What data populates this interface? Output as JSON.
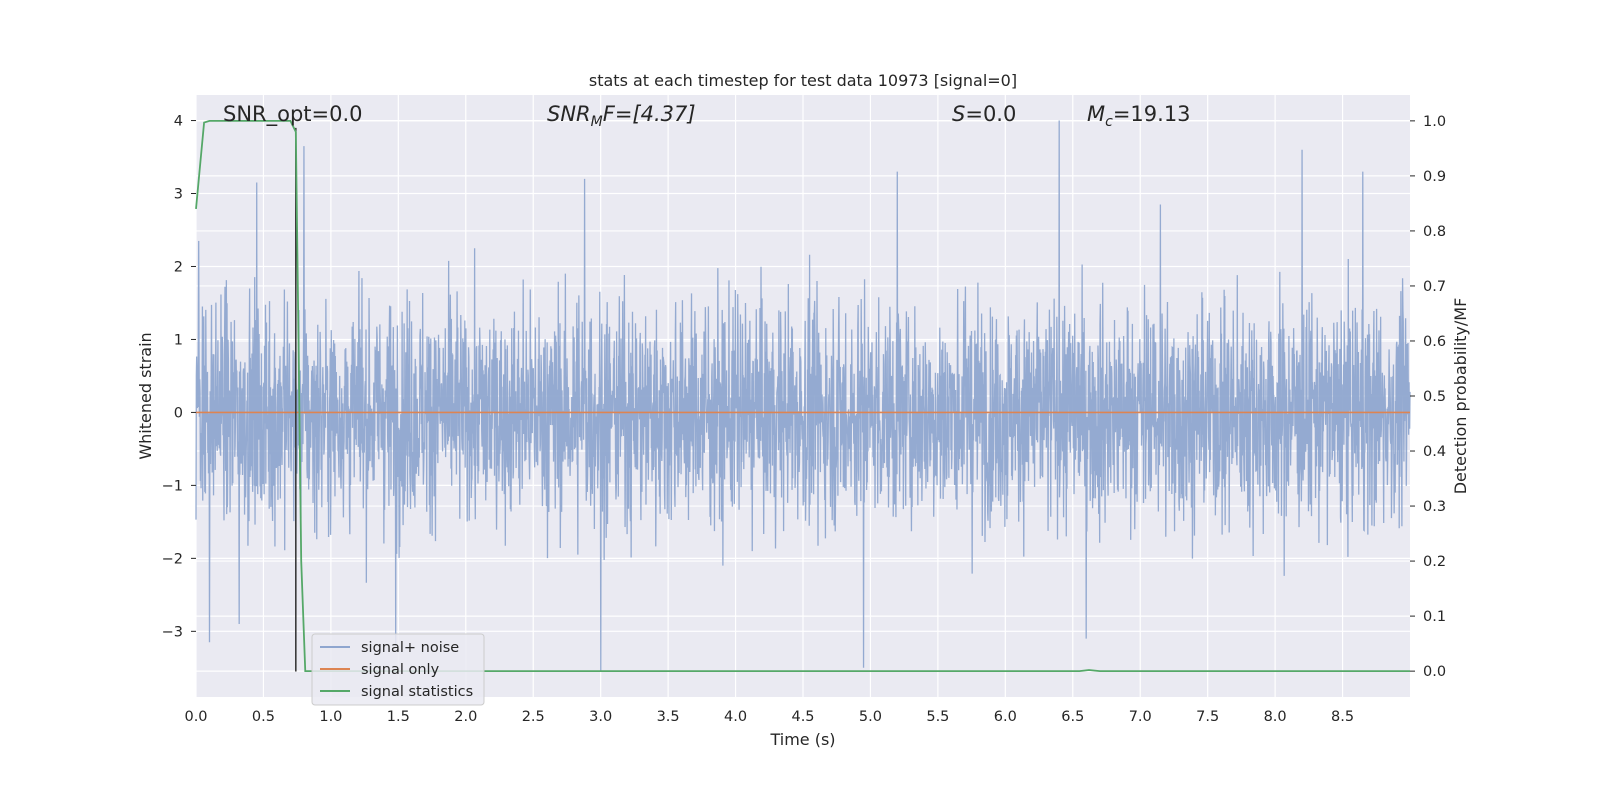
{
  "chart_data": {
    "type": "line",
    "title": "stats at each timestep for test data 10973 [signal=0]",
    "xlabel": "Time (s)",
    "ylabel_left": "Whitened strain",
    "ylabel_right": "Detection probability/MF",
    "xlim": [
      0.0,
      9.0
    ],
    "ylim_left": [
      -3.9,
      4.35
    ],
    "ylim_right": [
      -0.047,
      1.047
    ],
    "x_ticks": [
      "0.0",
      "0.5",
      "1.0",
      "1.5",
      "2.0",
      "2.5",
      "3.0",
      "3.5",
      "4.0",
      "4.5",
      "5.0",
      "5.5",
      "6.0",
      "6.5",
      "7.0",
      "7.5",
      "8.0",
      "8.5"
    ],
    "y_left_ticks": [
      "4",
      "3",
      "2",
      "1",
      "0",
      "−1",
      "−2",
      "−3"
    ],
    "y_right_ticks": [
      "1.0",
      "0.9",
      "0.8",
      "0.7",
      "0.6",
      "0.5",
      "0.4",
      "0.3",
      "0.2",
      "0.1",
      "0.0"
    ],
    "grid": true,
    "legend_position": "lower-left",
    "annotations": {
      "snr_opt": "SNR_opt=0.0",
      "snr_mf_main": "SNR",
      "snr_mf_sub": "M",
      "snr_mf_rest": "F=[4.37]",
      "s_var": "S",
      "s_val": "=0.0",
      "mc_var": "M",
      "mc_sub": "c",
      "mc_val": "=19.13"
    },
    "series": [
      {
        "name": "signal+ noise",
        "color": "#8fa6cf",
        "description_stats": {
          "mean": 0.0,
          "std": 0.75,
          "min": -3.55,
          "max": 4.0
        },
        "spikes": [
          {
            "x": 0.02,
            "y": 2.35
          },
          {
            "x": 0.1,
            "y": 2.9
          },
          {
            "x": 0.1,
            "y": -3.15
          },
          {
            "x": 0.32,
            "y": -2.9
          },
          {
            "x": 0.45,
            "y": 3.15
          },
          {
            "x": 0.8,
            "y": 3.65
          },
          {
            "x": 1.48,
            "y": -3.2
          },
          {
            "x": 2.88,
            "y": 3.2
          },
          {
            "x": 3.0,
            "y": -3.55
          },
          {
            "x": 4.95,
            "y": -3.5
          },
          {
            "x": 5.2,
            "y": 3.3
          },
          {
            "x": 6.4,
            "y": 4.0
          },
          {
            "x": 6.6,
            "y": -3.1
          },
          {
            "x": 7.15,
            "y": 2.85
          },
          {
            "x": 8.2,
            "y": 3.6
          },
          {
            "x": 8.65,
            "y": 3.3
          }
        ]
      },
      {
        "name": "signal only",
        "color": "#dd8452",
        "x": [
          0.0,
          9.0
        ],
        "y": [
          0.0,
          0.0
        ]
      },
      {
        "name": "signal statistics",
        "color": "#55a868",
        "axis": "right",
        "x": [
          0.0,
          0.06,
          0.1,
          0.5,
          0.7,
          0.74,
          0.76,
          0.78,
          0.81,
          1.0,
          6.55,
          6.62,
          6.7,
          9.0
        ],
        "y": [
          0.84,
          0.997,
          1.0,
          1.0,
          1.0,
          0.98,
          0.6,
          0.2,
          0.0,
          0.0,
          0.0,
          0.002,
          0.0,
          0.0
        ]
      }
    ],
    "vertical_marker": {
      "x": 0.74,
      "y_range_left": [
        -3.55,
        3.9
      ],
      "color": "#2f2f2f"
    }
  }
}
